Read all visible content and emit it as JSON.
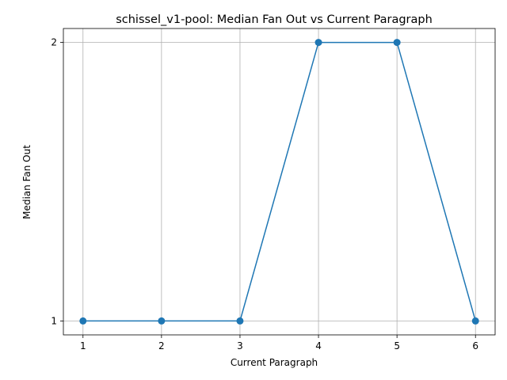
{
  "chart_data": {
    "type": "line",
    "title": "schissel_v1-pool: Median Fan Out vs Current Paragraph",
    "xlabel": "Current Paragraph",
    "ylabel": "Median Fan Out",
    "x": [
      1,
      2,
      3,
      4,
      5,
      6
    ],
    "series": [
      {
        "values": [
          1,
          1,
          1,
          2,
          2,
          1
        ]
      }
    ],
    "xticks": [
      1,
      2,
      3,
      4,
      5,
      6
    ],
    "yticks": [
      1,
      2
    ],
    "xlim": [
      0.75,
      6.25
    ],
    "ylim": [
      0.95,
      2.05
    ],
    "grid": true,
    "marker": "circle",
    "line_color": "#1f77b4"
  }
}
